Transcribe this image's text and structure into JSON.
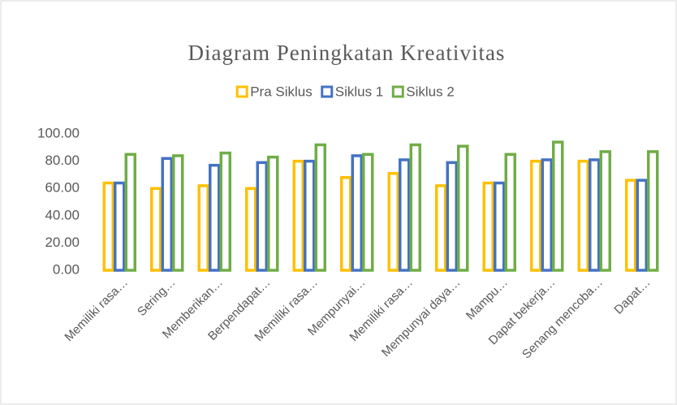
{
  "chart_data": {
    "type": "bar",
    "title": "Diagram Peningkatan Kreativitas",
    "categories": [
      "Memiliki rasa…",
      "Sering…",
      "Memberikan…",
      "Berpendapat…",
      "Memiliki rasa…",
      "Mempunyai…",
      "Memiliki rasa…",
      "Mempunyai daya…",
      "Mampu…",
      "Dapat bekerja…",
      "Senang mencoba…",
      "Dapat…"
    ],
    "series": [
      {
        "name": "Pra Siklus",
        "color": "#FFC000",
        "values": [
          64,
          60,
          62,
          60,
          80,
          68,
          71,
          62,
          64,
          80,
          80,
          66
        ]
      },
      {
        "name": "Siklus 1",
        "color": "#4472C4",
        "values": [
          64,
          82,
          77,
          79,
          80,
          84,
          81,
          79,
          64,
          81,
          81,
          66
        ]
      },
      {
        "name": "Siklus 2",
        "color": "#70AD47",
        "values": [
          85,
          84,
          86,
          83,
          92,
          85,
          92,
          91,
          85,
          94,
          87,
          87
        ]
      }
    ],
    "ylim": [
      0,
      100
    ],
    "yticks": [
      {
        "value": 0,
        "label": "0.00"
      },
      {
        "value": 20,
        "label": "20.00"
      },
      {
        "value": 40,
        "label": "40.00"
      },
      {
        "value": 60,
        "label": "60.00"
      },
      {
        "value": 80,
        "label": "80.00"
      },
      {
        "value": 100,
        "label": "100.00"
      }
    ],
    "legend": "top",
    "grid": false
  }
}
